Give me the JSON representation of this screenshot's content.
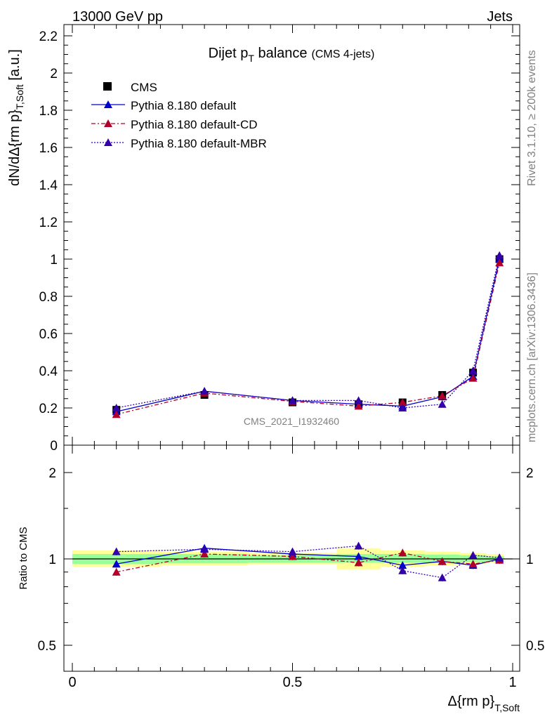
{
  "header": {
    "left": "13000 GeV pp",
    "right": "Jets"
  },
  "side_labels": {
    "rivet": "Rivet 3.1.10, ≥ 200k events",
    "mcplots": "mcplots.cern.ch [arXiv:1306.3436]"
  },
  "watermark": "CMS_2021_I1932460",
  "colors": {
    "cms": "#000000",
    "default": "#0000cc",
    "cd": "#b0002a",
    "mbr": "#3300aa",
    "band_inner": "#99ff99",
    "band_outer": "#ffff99"
  },
  "chart_data": [
    {
      "type": "line",
      "title_main": "Dijet p",
      "title_sub": "T",
      "title_rest": " balance",
      "title_note": "(CMS 4-jets)",
      "ylabel_main": "dN/dΔ{rm p}",
      "ylabel_sub": "T,Soft",
      "ylabel_unit": " [a.u.]",
      "xlim": [
        0,
        1
      ],
      "ylim": [
        0,
        2.25
      ],
      "y_ticks": [
        "0",
        "0.2",
        "0.4",
        "0.6",
        "0.8",
        "1",
        "1.2",
        "1.4",
        "1.6",
        "1.8",
        "2",
        "2.2"
      ],
      "legend": {
        "placement": "top-left",
        "entries": [
          "CMS",
          "Pythia 8.180 default",
          "Pythia 8.180 default-CD",
          "Pythia 8.180 default-MBR"
        ]
      },
      "x": [
        0.1,
        0.3,
        0.5,
        0.65,
        0.75,
        0.84,
        0.91,
        0.97
      ],
      "series": [
        {
          "name": "CMS",
          "values": [
            0.19,
            0.27,
            0.23,
            0.22,
            0.23,
            0.27,
            0.39,
            1.0
          ]
        },
        {
          "name": "Pythia 8.180 default",
          "values": [
            0.18,
            0.29,
            0.24,
            0.22,
            0.21,
            0.26,
            0.37,
            1.0
          ]
        },
        {
          "name": "Pythia 8.180 default-CD",
          "values": [
            0.165,
            0.28,
            0.235,
            0.21,
            0.23,
            0.265,
            0.36,
            0.98
          ]
        },
        {
          "name": "Pythia 8.180 default-MBR",
          "values": [
            0.2,
            0.29,
            0.24,
            0.24,
            0.2,
            0.22,
            0.4,
            1.02
          ]
        }
      ]
    },
    {
      "type": "line",
      "ylabel": "Ratio to CMS",
      "xlabel_main": "Δ{rm p}",
      "xlabel_sub": "T,Soft",
      "xlim": [
        0,
        1
      ],
      "ylim": [
        0.35,
        2.35
      ],
      "log_y": true,
      "y_ticks": [
        "0.5",
        "1",
        "2"
      ],
      "x_ticks": [
        "0",
        "0.5",
        "1"
      ],
      "x": [
        0.1,
        0.3,
        0.5,
        0.65,
        0.75,
        0.84,
        0.91,
        0.97
      ],
      "series": [
        {
          "name": "Pythia 8.180 default",
          "values": [
            0.96,
            1.09,
            1.04,
            1.02,
            0.95,
            0.98,
            0.95,
            1.0
          ]
        },
        {
          "name": "Pythia 8.180 default-CD",
          "values": [
            0.9,
            1.04,
            1.02,
            0.97,
            1.05,
            0.98,
            0.96,
            0.99
          ]
        },
        {
          "name": "Pythia 8.180 default-MBR",
          "values": [
            1.06,
            1.08,
            1.06,
            1.11,
            0.91,
            0.86,
            1.03,
            1.01
          ]
        }
      ],
      "band_inner": [
        {
          "x0": 0.0,
          "x1": 0.2,
          "lo": 0.96,
          "hi": 1.04
        },
        {
          "x0": 0.2,
          "x1": 0.4,
          "lo": 0.965,
          "hi": 1.04
        },
        {
          "x0": 0.4,
          "x1": 0.6,
          "lo": 0.97,
          "hi": 1.03
        },
        {
          "x0": 0.6,
          "x1": 0.7,
          "lo": 0.97,
          "hi": 1.04
        },
        {
          "x0": 0.7,
          "x1": 0.8,
          "lo": 0.97,
          "hi": 1.04
        },
        {
          "x0": 0.8,
          "x1": 0.88,
          "lo": 0.97,
          "hi": 1.035
        },
        {
          "x0": 0.88,
          "x1": 0.94,
          "lo": 0.975,
          "hi": 1.03
        },
        {
          "x0": 0.94,
          "x1": 0.98,
          "lo": 0.98,
          "hi": 1.02
        }
      ],
      "band_outer": [
        {
          "x0": 0.0,
          "x1": 0.2,
          "lo": 0.94,
          "hi": 1.07
        },
        {
          "x0": 0.2,
          "x1": 0.4,
          "lo": 0.95,
          "hi": 1.06
        },
        {
          "x0": 0.4,
          "x1": 0.6,
          "lo": 0.955,
          "hi": 1.05
        },
        {
          "x0": 0.6,
          "x1": 0.7,
          "lo": 0.92,
          "hi": 1.09
        },
        {
          "x0": 0.7,
          "x1": 0.8,
          "lo": 0.94,
          "hi": 1.07
        },
        {
          "x0": 0.8,
          "x1": 0.88,
          "lo": 0.95,
          "hi": 1.06
        },
        {
          "x0": 0.88,
          "x1": 0.94,
          "lo": 0.96,
          "hi": 1.05
        },
        {
          "x0": 0.94,
          "x1": 0.98,
          "lo": 0.97,
          "hi": 1.04
        }
      ]
    }
  ]
}
